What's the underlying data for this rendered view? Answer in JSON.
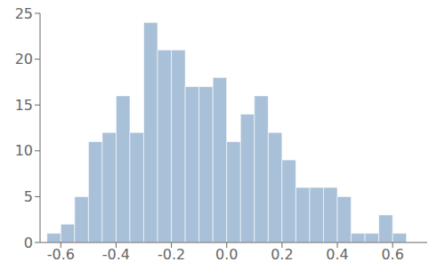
{
  "chart_data": {
    "type": "histogram",
    "bins": [
      -0.65,
      -0.6,
      -0.55,
      -0.5,
      -0.45,
      -0.4,
      -0.35,
      -0.3,
      -0.25,
      -0.2,
      -0.15,
      -0.1,
      -0.05,
      0,
      0.05,
      0.1,
      0.15,
      0.2,
      0.25,
      0.3,
      0.35,
      0.4,
      0.45,
      0.5,
      0.55,
      0.6,
      0.65
    ],
    "values": [
      1,
      2,
      5,
      11,
      12,
      16,
      12,
      24,
      21,
      21,
      17,
      17,
      18,
      11,
      14,
      16,
      12,
      9,
      6,
      6,
      6,
      5,
      1,
      1,
      3,
      1
    ],
    "color": "#a8c0d8",
    "xlim": [
      -0.675,
      0.725
    ],
    "ylim": [
      0,
      25
    ],
    "xticks": [
      -0.6,
      -0.4,
      -0.2,
      {
        "value": 0,
        "label": "0.0"
      },
      0.2,
      0.4,
      0.6
    ],
    "yticks": [
      0,
      5,
      10,
      15,
      20,
      25
    ],
    "grid": false
  }
}
